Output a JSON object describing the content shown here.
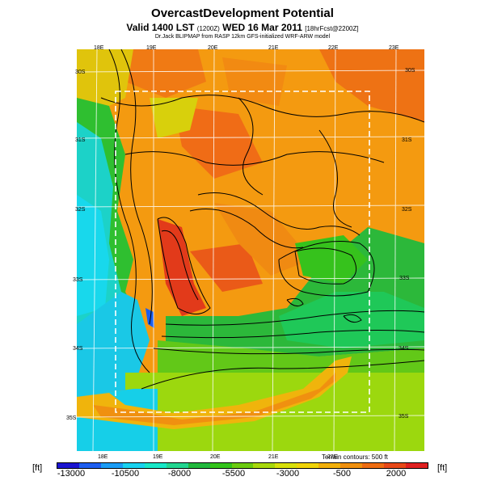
{
  "header": {
    "title": "OvercastDevelopment Potential",
    "valid_main": "Valid 1400 LST",
    "valid_small1": "(1200Z)",
    "valid_date": "WED 16 Mar 2011",
    "valid_small2": "[18hrFcst@2200Z]",
    "credit": "Dr.Jack BLIPMAP from RASP 12km GFS-initialized WRF-ARW model"
  },
  "map": {
    "lon_top": [
      "18E",
      "19E",
      "20E",
      "21E",
      "22E",
      "23E"
    ],
    "lon_bottom": [
      "18E",
      "19E",
      "20E",
      "21E",
      "22E"
    ],
    "lat_left": [
      "30S",
      "31S",
      "32S",
      "33S",
      "34S",
      "35S"
    ],
    "lat_right": [
      "30S",
      "31S",
      "32S",
      "33S",
      "34S",
      "35S"
    ],
    "terrain_note": "Terrain contours: 500 ft"
  },
  "colorbar": {
    "unit_left": "[ft]",
    "unit_right": "[ft]",
    "ticks": [
      "-13000",
      "-10500",
      "-8000",
      "-5500",
      "-3000",
      "-500",
      "2000"
    ],
    "colors": [
      "#1b14d0",
      "#1e5ef0",
      "#1a9cf5",
      "#18d2f0",
      "#17e8c8",
      "#22d690",
      "#20b83c",
      "#33c41a",
      "#6ccc10",
      "#a8d80c",
      "#d8e00a",
      "#f0d408",
      "#f2b00a",
      "#f0900e",
      "#ee6c12",
      "#e84818",
      "#e02020"
    ]
  }
}
